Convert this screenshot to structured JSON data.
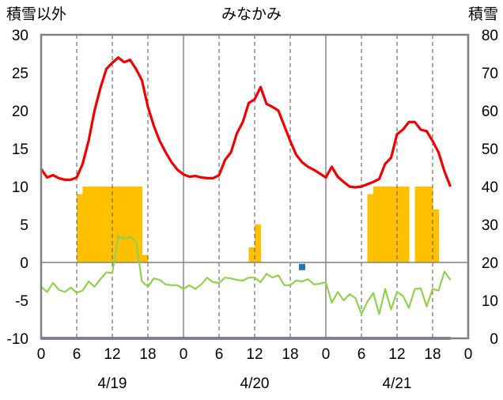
{
  "chart_data": {
    "type": "line",
    "title": "みなかみ",
    "left_axis_label": "積雪以外",
    "right_axis_label": "積雪",
    "left_ylim": [
      -10,
      30
    ],
    "left_yticks": [
      30,
      25,
      20,
      15,
      10,
      5,
      0,
      -5,
      -10
    ],
    "right_ylim": [
      0,
      80
    ],
    "right_yticks": [
      80,
      70,
      60,
      50,
      40,
      30,
      20,
      10,
      0
    ],
    "x_range_hours": [
      0,
      72
    ],
    "x_tick_labels": [
      "0",
      "6",
      "12",
      "18",
      "0",
      "6",
      "12",
      "18",
      "0",
      "6",
      "12",
      "18",
      "0"
    ],
    "date_labels": [
      {
        "label": "4/19"
      },
      {
        "label": "4/20"
      },
      {
        "label": "4/21"
      }
    ],
    "grid": true,
    "colors": {
      "temperature": "#ee0000",
      "precipitation": "#ffc000",
      "dew": "#92d050",
      "snow_depth": "#7030a0",
      "marker": "#1f77b4",
      "grid": "#888888",
      "frame": "#808080"
    },
    "temperature_series": [
      [
        0,
        12.3
      ],
      [
        1,
        11.2
      ],
      [
        2,
        11.5
      ],
      [
        3,
        11.1
      ],
      [
        4,
        10.9
      ],
      [
        5,
        10.9
      ],
      [
        6,
        11.2
      ],
      [
        7,
        13
      ],
      [
        8,
        16
      ],
      [
        9,
        20
      ],
      [
        10,
        23
      ],
      [
        11,
        25.5
      ],
      [
        12,
        26.3
      ],
      [
        13,
        27.0
      ],
      [
        14,
        26.4
      ],
      [
        15,
        26.7
      ],
      [
        16,
        25.5
      ],
      [
        17,
        24
      ],
      [
        18,
        20.5
      ],
      [
        19,
        18
      ],
      [
        20,
        16
      ],
      [
        21,
        14.5
      ],
      [
        22,
        13.2
      ],
      [
        23,
        12.2
      ],
      [
        24,
        11.6
      ],
      [
        25,
        11.3
      ],
      [
        26,
        11.4
      ],
      [
        27,
        11.2
      ],
      [
        28,
        11.1
      ],
      [
        29,
        11.1
      ],
      [
        30,
        11.5
      ],
      [
        31,
        13.5
      ],
      [
        32,
        14.5
      ],
      [
        33,
        17
      ],
      [
        34,
        18.5
      ],
      [
        35,
        21
      ],
      [
        36,
        21.5
      ],
      [
        37,
        23.1
      ],
      [
        38,
        20.9
      ],
      [
        39,
        20.5
      ],
      [
        40,
        20
      ],
      [
        41,
        18
      ],
      [
        42,
        16
      ],
      [
        43,
        14.2
      ],
      [
        44,
        13.2
      ],
      [
        45,
        12.6
      ],
      [
        46,
        12.2
      ],
      [
        47,
        11.7
      ],
      [
        48,
        11.2
      ],
      [
        49,
        12.6
      ],
      [
        50,
        11.3
      ],
      [
        51,
        10.6
      ],
      [
        52,
        10
      ],
      [
        53,
        9.9
      ],
      [
        54,
        10
      ],
      [
        55,
        10.3
      ],
      [
        56,
        10.6
      ],
      [
        57,
        11
      ],
      [
        58,
        13
      ],
      [
        59,
        13.8
      ],
      [
        60,
        16.9
      ],
      [
        61,
        17.5
      ],
      [
        62,
        18.5
      ],
      [
        63,
        18.5
      ],
      [
        64,
        17.5
      ],
      [
        65,
        17.3
      ],
      [
        66,
        16
      ],
      [
        67,
        14.5
      ],
      [
        68,
        12
      ],
      [
        69,
        10
      ]
    ],
    "dew_series": [
      [
        0,
        -3.2
      ],
      [
        1,
        -3.9
      ],
      [
        2,
        -2.7
      ],
      [
        3,
        -3.6
      ],
      [
        4,
        -3.9
      ],
      [
        5,
        -3.3
      ],
      [
        6,
        -4
      ],
      [
        7,
        -3.7
      ],
      [
        8,
        -2.5
      ],
      [
        9,
        -3.2
      ],
      [
        10,
        -2.2
      ],
      [
        11,
        -1.3
      ],
      [
        12,
        -1.4
      ],
      [
        13,
        3.5
      ],
      [
        14,
        3.1
      ],
      [
        15,
        3.4
      ],
      [
        16,
        2.7
      ],
      [
        17,
        -2.5
      ],
      [
        18,
        -3.2
      ],
      [
        19,
        -2.1
      ],
      [
        20,
        -2.3
      ],
      [
        21,
        -2.9
      ],
      [
        22,
        -3
      ],
      [
        23,
        -3
      ],
      [
        24,
        -3.5
      ],
      [
        25,
        -3
      ],
      [
        26,
        -3.5
      ],
      [
        27,
        -2.9
      ],
      [
        28,
        -2
      ],
      [
        29,
        -2.6
      ],
      [
        30,
        -2.7
      ],
      [
        31,
        -2
      ],
      [
        32,
        -2.1
      ],
      [
        33,
        -2.3
      ],
      [
        34,
        -2.4
      ],
      [
        35,
        -2
      ],
      [
        36,
        -2
      ],
      [
        37,
        -2.6
      ],
      [
        38,
        -1.5
      ],
      [
        39,
        -2
      ],
      [
        40,
        -1.7
      ],
      [
        41,
        -3
      ],
      [
        42,
        -3
      ],
      [
        43,
        -2.4
      ],
      [
        44,
        -2.5
      ],
      [
        45,
        -2.2
      ],
      [
        46,
        -2.9
      ],
      [
        47,
        -2.8
      ],
      [
        48,
        -2.6
      ],
      [
        49,
        -5.3
      ],
      [
        50,
        -3.9
      ],
      [
        51,
        -5
      ],
      [
        52,
        -4.2
      ],
      [
        53,
        -4.7
      ],
      [
        54,
        -6.8
      ],
      [
        55,
        -5.2
      ],
      [
        56,
        -4
      ],
      [
        57,
        -6.8
      ],
      [
        58,
        -3.5
      ],
      [
        59,
        -6.2
      ],
      [
        60,
        -3.9
      ],
      [
        61,
        -4.4
      ],
      [
        62,
        -6
      ],
      [
        63,
        -3.5
      ],
      [
        64,
        -3.4
      ],
      [
        65,
        -5.8
      ],
      [
        66,
        -3.5
      ],
      [
        67,
        -3.7
      ],
      [
        68,
        -1.2
      ],
      [
        69,
        -2.3
      ]
    ],
    "precip_bars": [
      [
        6,
        9
      ],
      [
        7,
        10
      ],
      [
        8,
        10
      ],
      [
        9,
        10
      ],
      [
        10,
        10
      ],
      [
        11,
        10
      ],
      [
        12,
        10
      ],
      [
        13,
        10
      ],
      [
        14,
        10
      ],
      [
        15,
        10
      ],
      [
        16,
        10
      ],
      [
        17,
        1
      ],
      [
        35,
        2
      ],
      [
        36,
        5
      ],
      [
        55,
        9
      ],
      [
        56,
        10
      ],
      [
        57,
        10
      ],
      [
        58,
        10
      ],
      [
        59,
        10
      ],
      [
        60,
        10
      ],
      [
        61,
        10
      ],
      [
        63,
        10
      ],
      [
        64,
        10
      ],
      [
        65,
        10
      ],
      [
        66,
        7
      ]
    ],
    "marker_points": [
      [
        44,
        -0.6
      ]
    ],
    "snow_depth_series": [
      [
        0,
        0
      ],
      [
        69,
        0
      ]
    ]
  }
}
